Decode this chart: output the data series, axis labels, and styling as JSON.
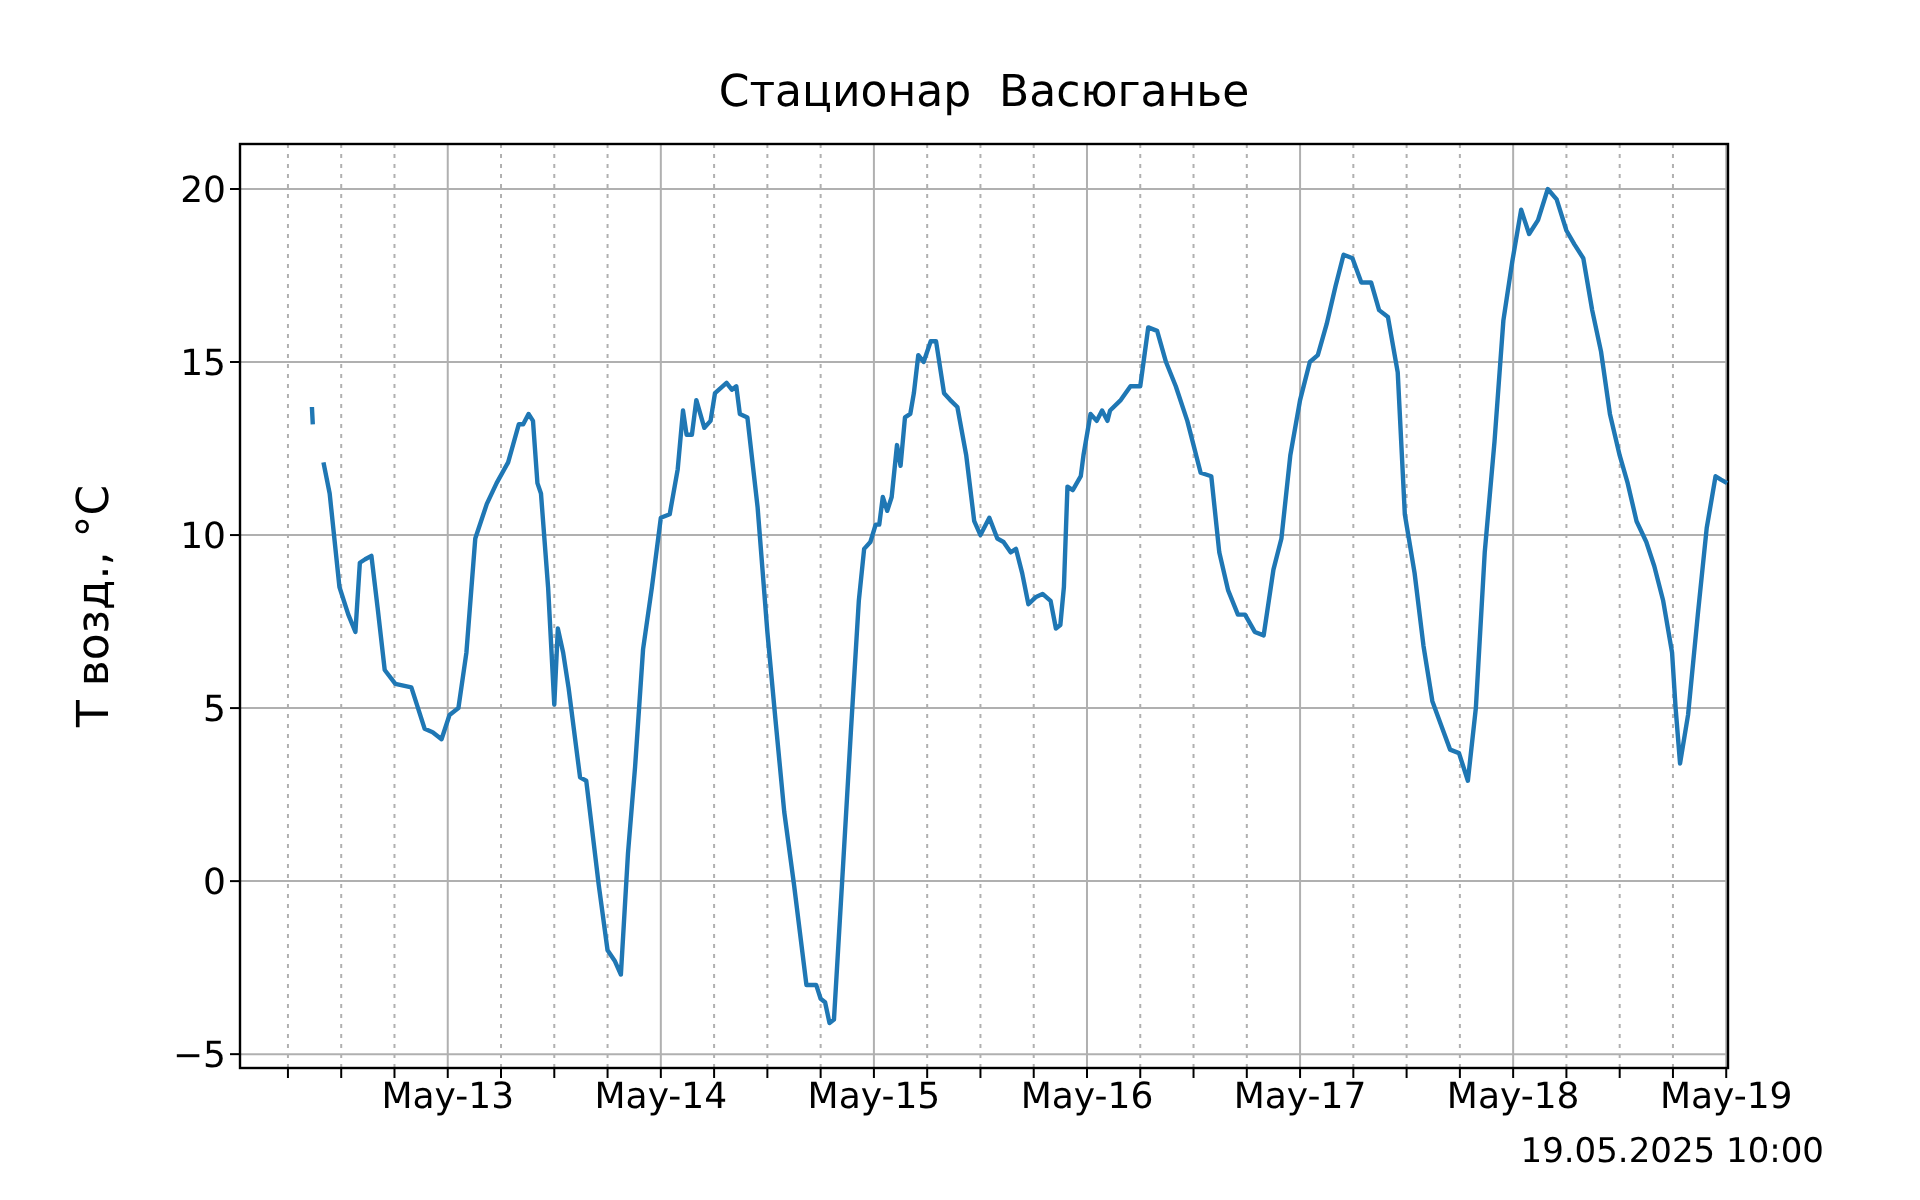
{
  "chart_data": {
    "type": "line",
    "title": "Стационар  Васюганье",
    "ylabel": "T возд., °C",
    "annotations": [
      "19.05.2025 10:00"
    ],
    "xlim": [
      "2025-05-12T00:36",
      "2025-05-19T00:12"
    ],
    "xticks": [
      {
        "value": "2025-05-12T06:00",
        "label": null
      },
      {
        "value": "2025-05-12T12:00",
        "label": null
      },
      {
        "value": "2025-05-12T18:00",
        "label": null
      },
      {
        "value": "2025-05-13T00:00",
        "label": "May-13"
      },
      {
        "value": "2025-05-13T06:00",
        "label": null
      },
      {
        "value": "2025-05-13T12:00",
        "label": null
      },
      {
        "value": "2025-05-13T18:00",
        "label": null
      },
      {
        "value": "2025-05-14T00:00",
        "label": "May-14"
      },
      {
        "value": "2025-05-14T06:00",
        "label": null
      },
      {
        "value": "2025-05-14T12:00",
        "label": null
      },
      {
        "value": "2025-05-14T18:00",
        "label": null
      },
      {
        "value": "2025-05-15T00:00",
        "label": "May-15"
      },
      {
        "value": "2025-05-15T06:00",
        "label": null
      },
      {
        "value": "2025-05-15T12:00",
        "label": null
      },
      {
        "value": "2025-05-15T18:00",
        "label": null
      },
      {
        "value": "2025-05-16T00:00",
        "label": "May-16"
      },
      {
        "value": "2025-05-16T06:00",
        "label": null
      },
      {
        "value": "2025-05-16T12:00",
        "label": null
      },
      {
        "value": "2025-05-16T18:00",
        "label": null
      },
      {
        "value": "2025-05-17T00:00",
        "label": "May-17"
      },
      {
        "value": "2025-05-17T06:00",
        "label": null
      },
      {
        "value": "2025-05-17T12:00",
        "label": null
      },
      {
        "value": "2025-05-17T18:00",
        "label": null
      },
      {
        "value": "2025-05-18T00:00",
        "label": "May-18"
      },
      {
        "value": "2025-05-18T06:00",
        "label": null
      },
      {
        "value": "2025-05-18T12:00",
        "label": null
      },
      {
        "value": "2025-05-18T18:00",
        "label": null
      },
      {
        "value": "2025-05-19T00:00",
        "label": "May-19"
      }
    ],
    "ylim": [
      -5.4,
      21.3
    ],
    "yticks": [
      -5,
      0,
      5,
      10,
      15,
      20
    ],
    "grid": true,
    "marker": "none",
    "line_style": "solid",
    "x": [
      "2025-05-12T08:42",
      "2025-05-12T08:48",
      "2025-05-12T09:15",
      "2025-05-12T10:00",
      "2025-05-12T10:42",
      "2025-05-12T11:48",
      "2025-05-12T12:48",
      "2025-05-12T13:36",
      "2025-05-12T14:06",
      "2025-05-12T14:42",
      "2025-05-12T15:24",
      "2025-05-12T16:06",
      "2025-05-12T16:54",
      "2025-05-12T18:06",
      "2025-05-12T19:54",
      "2025-05-12T21:24",
      "2025-05-12T22:18",
      "2025-05-12T23:18",
      "2025-05-13T00:12",
      "2025-05-13T01:12",
      "2025-05-13T02:06",
      "2025-05-13T03:06",
      "2025-05-13T04:24",
      "2025-05-13T05:30",
      "2025-05-13T06:48",
      "2025-05-13T08:00",
      "2025-05-13T08:30",
      "2025-05-13T09:06",
      "2025-05-13T09:36",
      "2025-05-13T10:06",
      "2025-05-13T10:30",
      "2025-05-13T11:18",
      "2025-05-13T12:00",
      "2025-05-13T12:24",
      "2025-05-13T13:00",
      "2025-05-13T13:36",
      "2025-05-13T14:54",
      "2025-05-13T15:36",
      "2025-05-13T17:00",
      "2025-05-13T18:00",
      "2025-05-13T18:48",
      "2025-05-13T19:30",
      "2025-05-13T20:18",
      "2025-05-13T21:06",
      "2025-05-13T22:00",
      "2025-05-13T23:00",
      "2025-05-14T00:00",
      "2025-05-14T01:00",
      "2025-05-14T01:54",
      "2025-05-14T02:30",
      "2025-05-14T02:54",
      "2025-05-14T03:30",
      "2025-05-14T04:00",
      "2025-05-14T04:54",
      "2025-05-14T05:36",
      "2025-05-14T06:06",
      "2025-05-14T07:24",
      "2025-05-14T08:00",
      "2025-05-14T08:30",
      "2025-05-14T08:54",
      "2025-05-14T09:45",
      "2025-05-14T10:54",
      "2025-05-14T12:00",
      "2025-05-14T12:54",
      "2025-05-14T13:54",
      "2025-05-14T15:00",
      "2025-05-14T16:24",
      "2025-05-14T17:30",
      "2025-05-14T18:00",
      "2025-05-14T18:30",
      "2025-05-14T19:00",
      "2025-05-14T19:30",
      "2025-05-14T20:24",
      "2025-05-14T21:24",
      "2025-05-14T22:18",
      "2025-05-14T22:54",
      "2025-05-14T23:36",
      "2025-05-15T00:12",
      "2025-05-15T00:36",
      "2025-05-15T01:00",
      "2025-05-15T01:30",
      "2025-05-15T02:00",
      "2025-05-15T02:36",
      "2025-05-15T03:00",
      "2025-05-15T03:30",
      "2025-05-15T04:06",
      "2025-05-15T04:30",
      "2025-05-15T05:00",
      "2025-05-15T05:36",
      "2025-05-15T06:24",
      "2025-05-15T07:00",
      "2025-05-15T07:54",
      "2025-05-15T08:36",
      "2025-05-15T09:24",
      "2025-05-15T10:24",
      "2025-05-15T11:18",
      "2025-05-15T12:00",
      "2025-05-15T13:00",
      "2025-05-15T13:54",
      "2025-05-15T14:36",
      "2025-05-15T15:24",
      "2025-05-15T16:00",
      "2025-05-15T16:42",
      "2025-05-15T17:24",
      "2025-05-15T18:12",
      "2025-05-15T19:00",
      "2025-05-15T19:54",
      "2025-05-15T20:30",
      "2025-05-15T21:00",
      "2025-05-15T21:24",
      "2025-05-15T21:48",
      "2025-05-15T22:24",
      "2025-05-15T23:18",
      "2025-05-15T23:36",
      "2025-05-16T00:24",
      "2025-05-16T01:06",
      "2025-05-16T01:42",
      "2025-05-16T02:18",
      "2025-05-16T02:36",
      "2025-05-16T03:48",
      "2025-05-16T04:54",
      "2025-05-16T06:00",
      "2025-05-16T06:54",
      "2025-05-16T07:54",
      "2025-05-16T08:54",
      "2025-05-16T10:00",
      "2025-05-16T11:18",
      "2025-05-16T12:48",
      "2025-05-16T14:00",
      "2025-05-16T14:54",
      "2025-05-16T15:54",
      "2025-05-16T17:00",
      "2025-05-16T17:48",
      "2025-05-16T18:54",
      "2025-05-16T19:54",
      "2025-05-16T21:00",
      "2025-05-16T21:54",
      "2025-05-16T22:54",
      "2025-05-17T00:00",
      "2025-05-17T01:06",
      "2025-05-17T02:00",
      "2025-05-17T03:00",
      "2025-05-17T04:00",
      "2025-05-17T04:54",
      "2025-05-17T05:54",
      "2025-05-17T06:54",
      "2025-05-17T08:00",
      "2025-05-17T08:54",
      "2025-05-17T09:54",
      "2025-05-17T11:00",
      "2025-05-17T11:48",
      "2025-05-17T12:54",
      "2025-05-17T13:54",
      "2025-05-17T14:54",
      "2025-05-17T15:54",
      "2025-05-17T16:54",
      "2025-05-17T17:54",
      "2025-05-17T18:54",
      "2025-05-17T19:48",
      "2025-05-17T20:48",
      "2025-05-17T21:54",
      "2025-05-17T22:54",
      "2025-05-17T23:54",
      "2025-05-18T00:54",
      "2025-05-18T01:48",
      "2025-05-18T02:48",
      "2025-05-18T03:54",
      "2025-05-18T04:54",
      "2025-05-18T06:00",
      "2025-05-18T06:54",
      "2025-05-18T07:54",
      "2025-05-18T08:54",
      "2025-05-18T09:54",
      "2025-05-18T10:54",
      "2025-05-18T12:00",
      "2025-05-18T12:54",
      "2025-05-18T13:54",
      "2025-05-18T15:00",
      "2025-05-18T15:54",
      "2025-05-18T16:54",
      "2025-05-18T17:54",
      "2025-05-18T18:18",
      "2025-05-18T18:48",
      "2025-05-18T19:42",
      "2025-05-18T20:48",
      "2025-05-18T21:48",
      "2025-05-18T22:48",
      "2025-05-18T23:24",
      "2025-05-19T00:06"
    ],
    "series": [
      {
        "color": "#1f77b4",
        "values": [
          13.7,
          13.2,
          null,
          12.1,
          11.2,
          8.5,
          7.7,
          7.2,
          9.2,
          9.3,
          9.4,
          7.9,
          6.1,
          5.7,
          5.6,
          4.4,
          4.3,
          4.1,
          4.8,
          5.0,
          6.6,
          9.9,
          10.9,
          11.5,
          12.1,
          13.2,
          13.2,
          13.5,
          13.3,
          11.5,
          11.2,
          8.5,
          5.1,
          7.3,
          6.6,
          5.6,
          3.0,
          2.9,
          -0.1,
          -2.0,
          -2.3,
          -2.7,
          0.8,
          3.3,
          6.7,
          8.5,
          10.5,
          10.6,
          11.9,
          13.6,
          12.9,
          12.9,
          13.9,
          13.1,
          13.3,
          14.1,
          14.4,
          14.2,
          14.3,
          13.5,
          13.4,
          10.8,
          7.2,
          4.7,
          2.0,
          -0.1,
          -3.0,
          -3.0,
          -3.4,
          -3.5,
          -4.1,
          -4.0,
          -0.1,
          4.3,
          8.1,
          9.6,
          9.8,
          10.3,
          10.3,
          11.1,
          10.7,
          11.1,
          12.6,
          12.0,
          13.4,
          13.5,
          14.1,
          15.2,
          15.0,
          15.6,
          15.6,
          14.1,
          13.9,
          13.7,
          12.3,
          10.4,
          10.0,
          10.5,
          9.9,
          9.8,
          9.5,
          9.6,
          8.9,
          8.0,
          8.2,
          8.3,
          8.1,
          7.3,
          7.4,
          8.5,
          11.4,
          11.3,
          11.7,
          12.3,
          13.5,
          13.3,
          13.6,
          13.3,
          13.6,
          13.9,
          14.3,
          14.3,
          16.0,
          15.9,
          15.0,
          14.3,
          13.3,
          11.8,
          11.7,
          9.5,
          8.4,
          7.7,
          7.7,
          7.2,
          7.1,
          9.0,
          9.9,
          12.3,
          13.9,
          15.0,
          15.2,
          16.1,
          17.2,
          18.1,
          18.0,
          17.3,
          17.3,
          16.5,
          16.3,
          14.7,
          10.6,
          8.9,
          6.8,
          5.2,
          4.5,
          3.8,
          3.7,
          2.9,
          5.0,
          9.5,
          12.7,
          16.2,
          17.9,
          19.4,
          18.7,
          19.1,
          20.0,
          19.7,
          18.8,
          18.4,
          18.0,
          16.5,
          15.3,
          13.5,
          12.3,
          11.5,
          10.4,
          9.8,
          9.1,
          8.1,
          6.6,
          5.0,
          3.4,
          4.8,
          7.7,
          10.2,
          11.7,
          11.6,
          11.5
        ]
      }
    ]
  }
}
